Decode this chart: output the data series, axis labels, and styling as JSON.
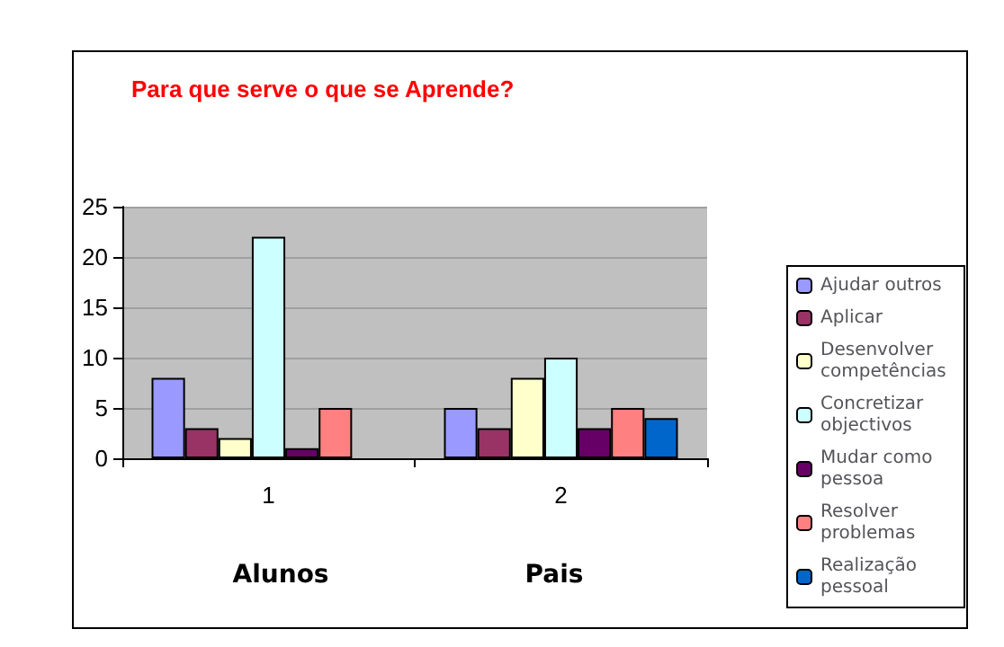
{
  "chart_data": {
    "type": "bar",
    "title": "Para que serve o que se Aprende?",
    "categories": [
      "1",
      "2"
    ],
    "series": [
      {
        "name": "Ajudar outros",
        "color": "#9999ff",
        "values": [
          8,
          5
        ]
      },
      {
        "name": "Aplicar",
        "color": "#993366",
        "values": [
          3,
          3
        ]
      },
      {
        "name": "Desenvolver competências",
        "color": "#ffffcc",
        "values": [
          2,
          8
        ]
      },
      {
        "name": "Concretizar objectivos",
        "color": "#ccffff",
        "values": [
          22,
          10
        ]
      },
      {
        "name": "Mudar como pessoa",
        "color": "#660066",
        "values": [
          1,
          3
        ]
      },
      {
        "name": "Resolver problemas",
        "color": "#ff8080",
        "values": [
          5,
          5
        ]
      },
      {
        "name": "Realização pessoal",
        "color": "#0066cc",
        "values": [
          null,
          4
        ]
      }
    ],
    "annotations": [
      "Alunos",
      "Pais"
    ],
    "ylim": [
      0,
      25
    ],
    "yticks": [
      0,
      5,
      10,
      15,
      20,
      25
    ],
    "grid": "y",
    "legend": "right"
  }
}
